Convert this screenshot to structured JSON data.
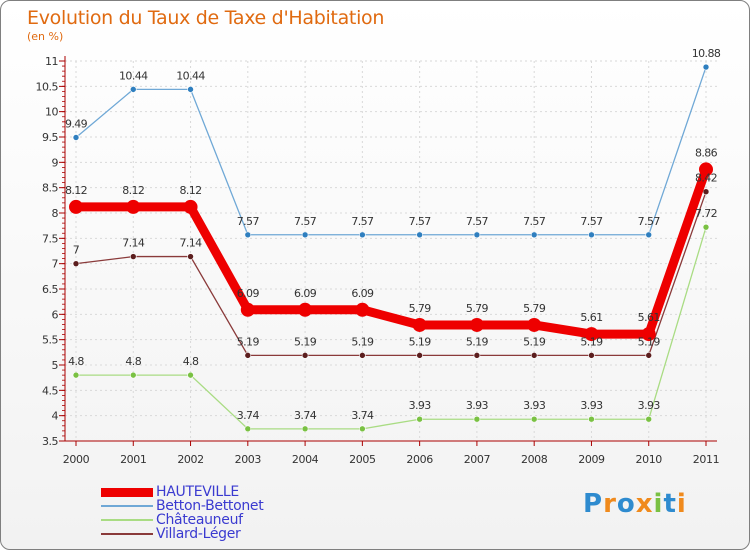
{
  "title": "Evolution du Taux de Taxe d'Habitation",
  "subtitle": "(en %)",
  "logo": {
    "text": "Proxiti",
    "colors": [
      "#2e8bcf",
      "#f08a1c",
      "#2e8bcf",
      "#f08a1c",
      "#7ac143",
      "#2e8bcf",
      "#f08a1c"
    ]
  },
  "chart_data": {
    "type": "line",
    "title": "Evolution du Taux de Taxe d'Habitation",
    "ylabel": "(en %)",
    "xlabel": "",
    "x": [
      "2000",
      "2001",
      "2002",
      "2003",
      "2004",
      "2005",
      "2006",
      "2007",
      "2008",
      "2009",
      "2010",
      "2011"
    ],
    "ylim": [
      3.5,
      11
    ],
    "yticks": [
      "3.5",
      "4",
      "4.5",
      "5",
      "5.5",
      "6",
      "6.5",
      "7",
      "7.5",
      "8",
      "8.5",
      "9",
      "9.5",
      "10",
      "10.5",
      "11"
    ],
    "grid": true,
    "legend": "bottom-left",
    "series": [
      {
        "name": "HAUTEVILLE",
        "color": "#ee0000",
        "emphasis": true,
        "values": [
          8.12,
          8.12,
          8.12,
          6.09,
          6.09,
          6.09,
          5.79,
          5.79,
          5.79,
          5.61,
          5.61,
          8.86
        ],
        "labels": [
          "8.12",
          "8.12",
          "8.12",
          "6.09",
          "6.09",
          "6.09",
          "5.79",
          "5.79",
          "5.79",
          "5.61",
          "5.61",
          "8.86"
        ]
      },
      {
        "name": "Betton-Bettonet",
        "color": "#6fa8d6",
        "marker": "#2f7fbf",
        "values": [
          9.49,
          10.44,
          10.44,
          7.57,
          7.57,
          7.57,
          7.57,
          7.57,
          7.57,
          7.57,
          7.57,
          10.88
        ],
        "labels": [
          "9.49",
          "10.44",
          "10.44",
          "7.57",
          "7.57",
          "7.57",
          "7.57",
          "7.57",
          "7.57",
          "7.57",
          "7.57",
          "10.88"
        ]
      },
      {
        "name": "Châteauneuf",
        "color": "#a9dc83",
        "marker": "#7ac143",
        "values": [
          4.8,
          4.8,
          4.8,
          3.74,
          3.74,
          3.74,
          3.93,
          3.93,
          3.93,
          3.93,
          3.93,
          7.72
        ],
        "labels": [
          "4.8",
          "4.8",
          "4.8",
          "3.74",
          "3.74",
          "3.74",
          "3.93",
          "3.93",
          "3.93",
          "3.93",
          "3.93",
          "7.72"
        ]
      },
      {
        "name": "Villard-Léger",
        "color": "#8a3a3a",
        "marker": "#5c1e1e",
        "values": [
          7,
          7.14,
          7.14,
          5.19,
          5.19,
          5.19,
          5.19,
          5.19,
          5.19,
          5.19,
          5.19,
          8.42
        ],
        "labels": [
          "7",
          "7.14",
          "7.14",
          "5.19",
          "5.19",
          "5.19",
          "5.19",
          "5.19",
          "5.19",
          "5.19",
          "5.19",
          "8.42"
        ]
      }
    ]
  }
}
